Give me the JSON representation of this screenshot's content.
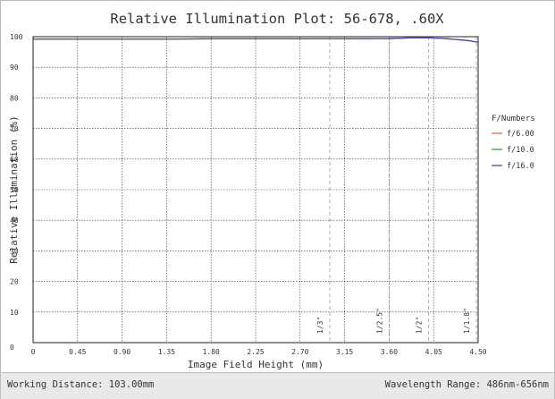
{
  "chart_data": {
    "type": "line",
    "title": "Relative Illumination Plot: 56-678, .60X",
    "xlabel": "Image Field Height (mm)",
    "ylabel": "Relative Illumination (%)",
    "xlim": [
      0,
      4.5
    ],
    "ylim": [
      0,
      100
    ],
    "x_ticks": [
      "0",
      "0.45",
      "0.90",
      "1.35",
      "1.80",
      "2.25",
      "2.70",
      "3.15",
      "3.60",
      "4.05",
      "4.50"
    ],
    "y_ticks": [
      "0",
      "10",
      "20",
      "30",
      "40",
      "50",
      "60",
      "70",
      "80",
      "90",
      "100"
    ],
    "grid": true,
    "legend": {
      "title": "F/Numbers",
      "placement": "right"
    },
    "series": [
      {
        "name": "f/6.00",
        "color": "#e26a4a",
        "x": [
          0,
          0.45,
          0.9,
          1.35,
          1.8,
          2.25,
          2.7,
          3.15,
          3.6,
          3.8,
          4.0,
          4.1,
          4.2,
          4.3,
          4.4,
          4.5
        ],
        "y": [
          99.2,
          99.2,
          99.2,
          99.2,
          99.3,
          99.3,
          99.3,
          99.3,
          99.4,
          99.6,
          99.6,
          99.5,
          99.3,
          99.0,
          98.7,
          98.2
        ]
      },
      {
        "name": "f/10.0",
        "color": "#3c9a3c",
        "x": [
          0,
          0.45,
          0.9,
          1.35,
          1.8,
          2.25,
          2.7,
          3.15,
          3.6,
          3.8,
          4.0,
          4.1,
          4.2,
          4.3,
          4.4,
          4.5
        ],
        "y": [
          99.2,
          99.2,
          99.2,
          99.2,
          99.3,
          99.3,
          99.3,
          99.3,
          99.4,
          99.6,
          99.6,
          99.5,
          99.3,
          99.0,
          98.7,
          98.2
        ]
      },
      {
        "name": "f/16.0",
        "color": "#4a4aaa",
        "x": [
          0,
          0.45,
          0.9,
          1.35,
          1.8,
          2.25,
          2.7,
          3.15,
          3.6,
          3.8,
          4.0,
          4.1,
          4.2,
          4.3,
          4.4,
          4.5
        ],
        "y": [
          99.2,
          99.2,
          99.2,
          99.2,
          99.3,
          99.3,
          99.3,
          99.3,
          99.4,
          99.6,
          99.6,
          99.5,
          99.3,
          99.0,
          98.7,
          98.2
        ]
      }
    ],
    "annotations": [
      {
        "label": "1/3\"",
        "x": 3.0
      },
      {
        "label": "1/2.5\"",
        "x": 3.6
      },
      {
        "label": "1/2\"",
        "x": 4.0
      },
      {
        "label": "1/1.8\"",
        "x": 4.5
      }
    ]
  },
  "footer": {
    "working_distance": "Working Distance: 103.00mm",
    "wavelength_range": "Wavelength Range: 486nm-656nm"
  }
}
